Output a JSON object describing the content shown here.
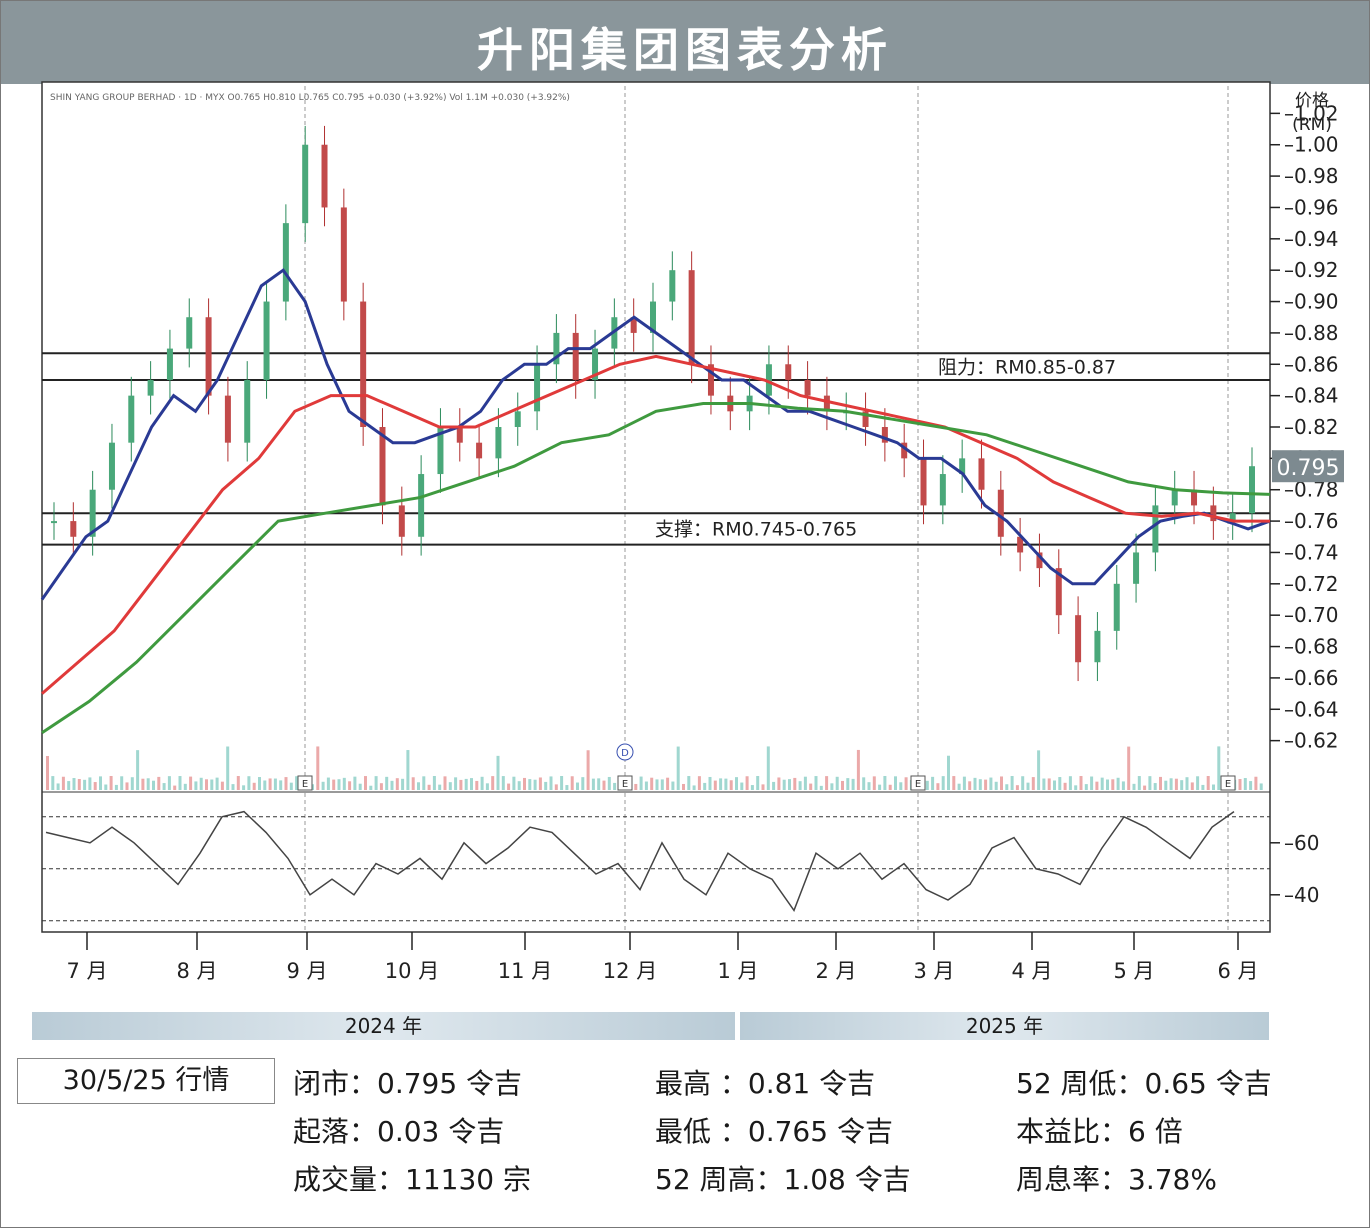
{
  "header": {
    "title": "升阳集团图表分析"
  },
  "chart_data": {
    "type": "candlestick",
    "info_line": "SHIN YANG GROUP BERHAD · 1D · MYX  O0.765  H0.810  L0.765  C0.795  +0.030 (+3.92%)  Vol 1.1M  +0.030 (+3.92%)",
    "y_axis_title": [
      "价格",
      "(RM)"
    ],
    "ylim": [
      0.6,
      1.04
    ],
    "y_ticks": [
      "1.02",
      "1.00",
      "0.98",
      "0.96",
      "0.94",
      "0.92",
      "0.90",
      "0.88",
      "0.86",
      "0.84",
      "0.82",
      "0.80",
      "0.78",
      "0.76",
      "0.74",
      "0.72",
      "0.70",
      "0.68",
      "0.66",
      "0.64",
      "0.62"
    ],
    "last_price_label": "0.795",
    "resistance_label": "阻力：RM0.85-0.87",
    "resistance": [
      0.85,
      0.867
    ],
    "support_label": "支撑：RM0.745-0.765",
    "support": [
      0.745,
      0.765
    ],
    "months": [
      "7 月",
      "8 月",
      "9 月",
      "10 月",
      "11 月",
      "12 月",
      "1 月",
      "2 月",
      "3 月",
      "4 月",
      "5 月",
      "6 月"
    ],
    "years": [
      "2024 年",
      "2025 年"
    ],
    "rsi_ticks": [
      "60",
      "40"
    ],
    "event_markers": [
      "E",
      "E",
      "E",
      "E"
    ],
    "dividend_marker": "D",
    "series": [
      {
        "name": "close",
        "color": "#222222",
        "values": [
          0.76,
          0.75,
          0.78,
          0.81,
          0.84,
          0.85,
          0.87,
          0.89,
          0.84,
          0.81,
          0.85,
          0.9,
          0.95,
          1.0,
          0.96,
          0.9,
          0.82,
          0.77,
          0.75,
          0.79,
          0.82,
          0.81,
          0.8,
          0.82,
          0.83,
          0.86,
          0.88,
          0.85,
          0.87,
          0.89,
          0.88,
          0.9,
          0.92,
          0.86,
          0.84,
          0.83,
          0.84,
          0.86,
          0.85,
          0.84,
          0.83,
          0.83,
          0.82,
          0.81,
          0.8,
          0.77,
          0.79,
          0.8,
          0.78,
          0.75,
          0.74,
          0.73,
          0.7,
          0.67,
          0.69,
          0.72,
          0.74,
          0.77,
          0.78,
          0.77,
          0.76,
          0.765,
          0.795
        ]
      },
      {
        "name": "ma_short",
        "color": "#2a3a94",
        "values": [
          0.71,
          0.73,
          0.75,
          0.76,
          0.79,
          0.82,
          0.84,
          0.83,
          0.85,
          0.88,
          0.91,
          0.92,
          0.9,
          0.86,
          0.83,
          0.82,
          0.81,
          0.81,
          0.815,
          0.82,
          0.83,
          0.85,
          0.86,
          0.86,
          0.87,
          0.87,
          0.88,
          0.89,
          0.88,
          0.87,
          0.86,
          0.85,
          0.85,
          0.84,
          0.83,
          0.83,
          0.825,
          0.82,
          0.815,
          0.81,
          0.8,
          0.8,
          0.79,
          0.77,
          0.76,
          0.745,
          0.73,
          0.72,
          0.72,
          0.735,
          0.75,
          0.76,
          0.763,
          0.765,
          0.76,
          0.755,
          0.76
        ]
      },
      {
        "name": "ma_mid",
        "color": "#e03a3a",
        "values": [
          0.65,
          0.67,
          0.69,
          0.72,
          0.75,
          0.78,
          0.8,
          0.83,
          0.84,
          0.84,
          0.83,
          0.82,
          0.82,
          0.83,
          0.84,
          0.85,
          0.86,
          0.865,
          0.86,
          0.855,
          0.85,
          0.84,
          0.835,
          0.83,
          0.825,
          0.82,
          0.81,
          0.8,
          0.785,
          0.775,
          0.765,
          0.763,
          0.765,
          0.76,
          0.76
        ]
      },
      {
        "name": "ma_long",
        "color": "#3f9a3f",
        "values": [
          0.625,
          0.645,
          0.67,
          0.7,
          0.73,
          0.76,
          0.765,
          0.77,
          0.775,
          0.785,
          0.795,
          0.81,
          0.815,
          0.83,
          0.835,
          0.835,
          0.832,
          0.83,
          0.825,
          0.82,
          0.815,
          0.805,
          0.795,
          0.785,
          0.78,
          0.778,
          0.777
        ]
      }
    ],
    "rsi": [
      64,
      62,
      60,
      66,
      60,
      52,
      44,
      56,
      70,
      72,
      64,
      54,
      40,
      46,
      40,
      52,
      48,
      54,
      46,
      60,
      52,
      58,
      66,
      64,
      56,
      48,
      52,
      42,
      60,
      46,
      40,
      56,
      50,
      46,
      34,
      56,
      50,
      56,
      46,
      52,
      42,
      38,
      44,
      58,
      62,
      50,
      48,
      44,
      58,
      70,
      66,
      60,
      54,
      66,
      72
    ]
  },
  "stats": {
    "date_label": "30/5/25 行情",
    "close": "闭市：0.795 令吉",
    "change": "起落：0.03 令吉",
    "volume": "成交量：11130 宗",
    "high": "最高 ：0.81 令吉",
    "low": "最低 ：0.765 令吉",
    "high52": "52 周高：1.08 令吉",
    "low52": "52 周低：0.65 令吉",
    "pe": "本益比：6 倍",
    "yield": "周息率：3.78%"
  }
}
